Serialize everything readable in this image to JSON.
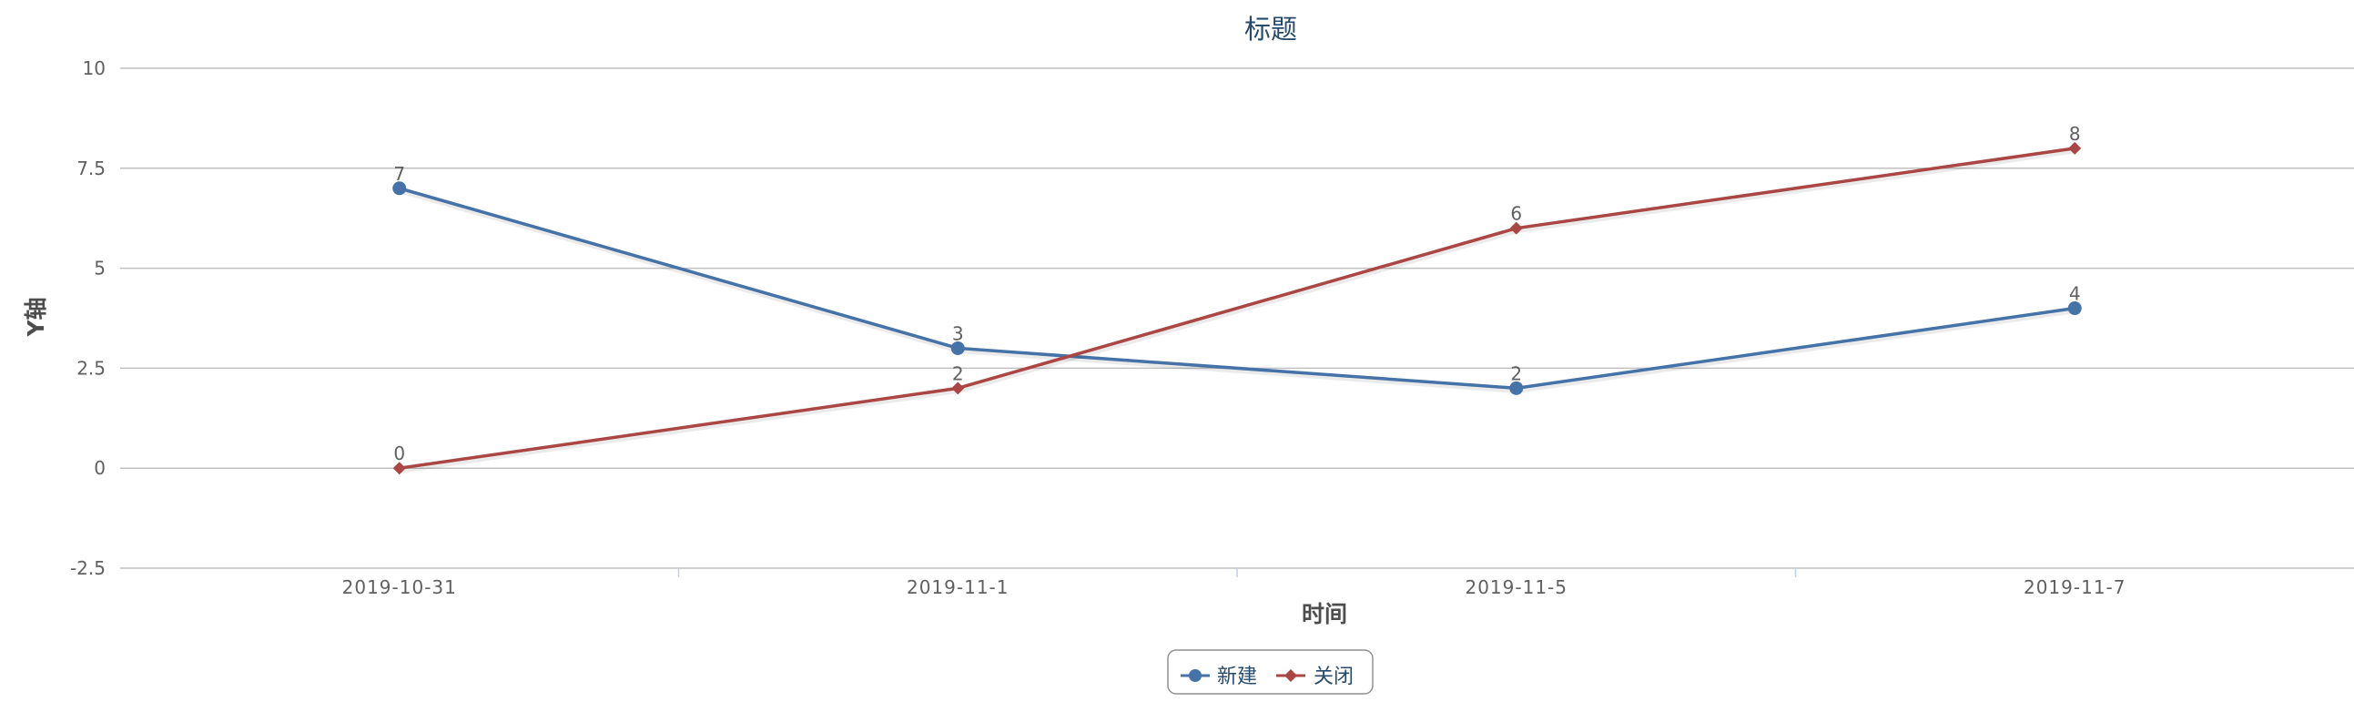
{
  "chart_data": {
    "type": "line",
    "title": "标题",
    "xlabel": "时间",
    "ylabel": "Y轴",
    "categories": [
      "2019-10-31",
      "2019-11-1",
      "2019-11-5",
      "2019-11-7"
    ],
    "ylim": [
      -2.5,
      10
    ],
    "yticks": [
      "10",
      "7.5",
      "5",
      "2.5",
      "0",
      "-2.5"
    ],
    "grid": true,
    "legend_position": "bottom-center",
    "series": [
      {
        "name": "新建",
        "values": [
          7,
          3,
          2,
          4
        ],
        "data_labels": [
          "7",
          "3",
          "2",
          "4"
        ],
        "color": "#4572a7",
        "marker": "circle"
      },
      {
        "name": "关闭",
        "values": [
          0,
          2,
          6,
          8
        ],
        "data_labels": [
          "0",
          "2",
          "6",
          "8"
        ],
        "color": "#aa4643",
        "marker": "diamond"
      }
    ]
  }
}
